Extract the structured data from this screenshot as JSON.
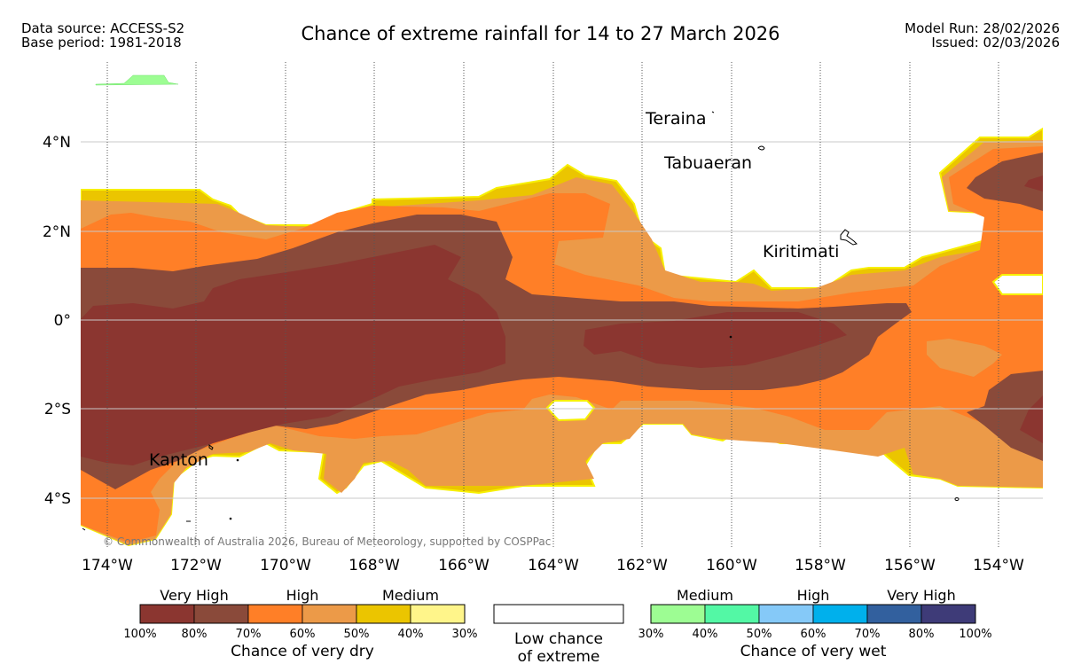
{
  "header": {
    "data_source": "Data source: ACCESS-S2",
    "base_period": "Base period: 1981-2018",
    "title": "Chance of extreme rainfall for 14 to 27 March 2026",
    "model_run": "Model Run: 28/02/2026",
    "issued": "Issued: 02/03/2026"
  },
  "map": {
    "lat_labels": [
      "4°N",
      "2°N",
      "0°",
      "2°S",
      "4°S"
    ],
    "lon_labels": [
      "174°W",
      "172°W",
      "170°W",
      "168°W",
      "166°W",
      "164°W",
      "162°W",
      "160°W",
      "158°W",
      "156°W",
      "154°W"
    ],
    "places": [
      "Teraina",
      "Tabuaeran",
      "Kiritimati",
      "Kanton"
    ],
    "copyright": "© Commonwealth of Australia 2026, Bureau of Meteorology, supported by COSPPac"
  },
  "legend": {
    "dry": {
      "groups": [
        "Very High",
        "High",
        "Medium"
      ],
      "ticks": [
        "100%",
        "80%",
        "70%",
        "60%",
        "50%",
        "40%",
        "30%"
      ],
      "colors": [
        "#8b3630",
        "#8a4a3a",
        "#ff7f27",
        "#ec9a48",
        "#ebc500",
        "#fff58a"
      ],
      "caption": "Chance of very dry"
    },
    "low": {
      "caption_line1": "Low chance",
      "caption_line2": "of extreme"
    },
    "wet": {
      "groups": [
        "Medium",
        "High",
        "Very High"
      ],
      "ticks": [
        "30%",
        "40%",
        "50%",
        "60%",
        "70%",
        "80%",
        "100%"
      ],
      "colors": [
        "#9dfd93",
        "#53f8a5",
        "#85c9f8",
        "#00b0ec",
        "#32609e",
        "#3e3b78"
      ],
      "caption": "Chance of very wet"
    }
  }
}
